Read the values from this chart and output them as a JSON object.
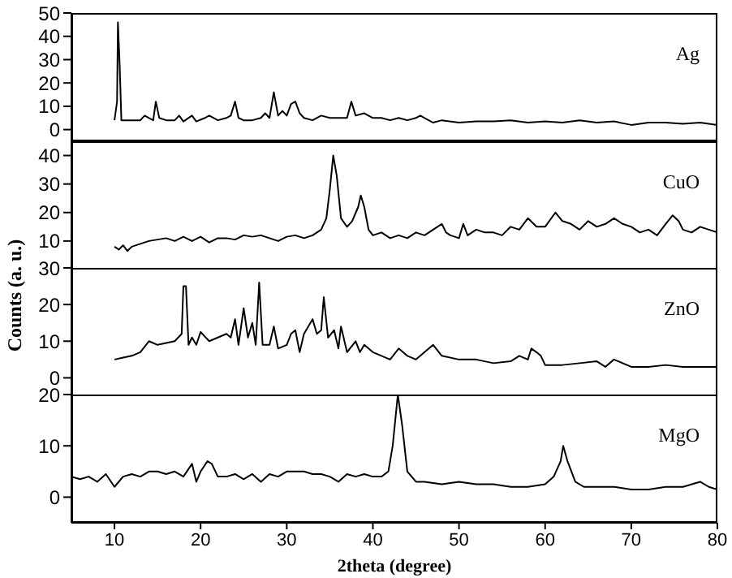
{
  "chart_data": [
    {
      "type": "line",
      "xlim": [
        5,
        80
      ],
      "xticks": [
        10,
        20,
        30,
        40,
        50,
        60,
        70,
        80
      ],
      "ylim": [
        -5,
        50
      ],
      "yticks": [
        0,
        10,
        20,
        30,
        40,
        50
      ],
      "tick_labels": "y",
      "marker": "none",
      "line_style": "solid",
      "series": [
        {
          "name": "Ag",
          "color": "#000000",
          "x": [
            10,
            10.3,
            10.4,
            10.6,
            10.8,
            11.5,
            12,
            13,
            13.5,
            14,
            14.5,
            14.8,
            15.2,
            16,
            17,
            17.5,
            18,
            19,
            19.5,
            20.5,
            21,
            22,
            23,
            23.5,
            24,
            24.4,
            25,
            26,
            27,
            27.5,
            28,
            28.5,
            29,
            29.5,
            30,
            30.5,
            31,
            31.5,
            32,
            33,
            34,
            35,
            36,
            37,
            37.5,
            38,
            39,
            40,
            41,
            42,
            43,
            44,
            45,
            45.5,
            46,
            47,
            48,
            50,
            52,
            54,
            56,
            58,
            60,
            62,
            64,
            66,
            68,
            70,
            72,
            74,
            76,
            78,
            80
          ],
          "values": [
            4,
            12,
            46,
            28,
            4,
            4,
            4,
            4,
            6,
            5,
            4,
            12,
            5,
            4,
            4,
            6,
            3.5,
            6,
            3.5,
            5,
            6,
            4,
            5,
            6,
            12,
            5,
            4,
            4,
            5,
            7,
            5,
            16,
            6,
            8,
            6,
            11,
            12,
            7,
            5,
            4,
            6,
            5,
            5,
            5,
            12,
            6,
            7,
            5,
            5,
            4,
            5,
            4,
            5,
            6,
            5,
            3,
            4,
            3,
            3.5,
            3.5,
            4,
            3,
            3.5,
            3,
            4,
            3,
            3.5,
            2,
            3,
            3,
            2.5,
            3,
            2
          ]
        }
      ]
    },
    {
      "type": "line",
      "xlim": [
        5,
        80
      ],
      "xticks": [
        10,
        20,
        30,
        40,
        50,
        60,
        70,
        80
      ],
      "ylim": [
        0,
        45
      ],
      "yticks": [
        10,
        20,
        30,
        40
      ],
      "tick_labels": "y",
      "marker": "none",
      "line_style": "solid",
      "series": [
        {
          "name": "CuO",
          "color": "#000000",
          "x": [
            10,
            10.5,
            11,
            11.5,
            12,
            13,
            14,
            15,
            16,
            17,
            18,
            19,
            20,
            21,
            22,
            23,
            24,
            25,
            26,
            27,
            28,
            29,
            30,
            31,
            32,
            33,
            34,
            34.6,
            35,
            35.4,
            35.8,
            36.3,
            37,
            37.6,
            38.3,
            38.6,
            39,
            39.5,
            40,
            41,
            42,
            43,
            44,
            45,
            46,
            47,
            48,
            48.5,
            49,
            50,
            50.5,
            51,
            52,
            53,
            54,
            55,
            56,
            57,
            58,
            59,
            60,
            61.2,
            62,
            63,
            64,
            65,
            66,
            67,
            68,
            69,
            70,
            71,
            72,
            73,
            74,
            74.8,
            75.5,
            76,
            77,
            78,
            79,
            80
          ],
          "values": [
            8,
            7,
            8.5,
            6.5,
            8,
            9,
            10,
            10.5,
            11,
            10,
            11.5,
            10,
            11.5,
            9.5,
            11,
            11,
            10.5,
            12,
            11.5,
            12,
            11,
            10,
            11.5,
            12,
            11,
            12,
            14,
            18,
            28,
            40,
            33,
            18,
            15,
            17,
            22,
            26,
            22,
            14,
            12,
            13,
            11,
            12,
            11,
            13,
            12,
            14,
            16,
            13,
            12,
            11,
            16,
            12,
            14,
            13,
            13,
            12,
            15,
            14,
            18,
            15,
            15,
            20,
            17,
            16,
            14,
            17,
            15,
            16,
            18,
            16,
            15,
            13,
            14,
            12,
            16,
            19,
            17,
            14,
            13,
            15,
            14,
            13
          ]
        }
      ]
    },
    {
      "type": "line",
      "xlim": [
        5,
        80
      ],
      "xticks": [
        10,
        20,
        30,
        40,
        50,
        60,
        70,
        80
      ],
      "ylim": [
        -5,
        30
      ],
      "yticks": [
        0,
        10,
        20,
        30
      ],
      "tick_labels": "y",
      "marker": "none",
      "line_style": "solid",
      "ylabel": "Counts (a. u.)",
      "series": [
        {
          "name": "ZnO",
          "color": "#000000",
          "x": [
            10,
            11,
            12,
            13,
            14,
            15,
            16,
            17,
            17.8,
            18,
            18.3,
            18.6,
            19,
            19.5,
            20,
            21,
            22,
            23,
            23.5,
            24,
            24.4,
            25,
            25.5,
            26,
            26.4,
            26.8,
            27.2,
            28,
            28.5,
            29,
            30,
            30.5,
            31,
            31.5,
            32,
            33,
            33.5,
            34,
            34.3,
            34.8,
            35.5,
            36,
            36.3,
            37,
            38,
            38.5,
            39,
            40,
            41,
            42,
            43,
            44,
            45,
            46,
            47,
            48,
            50,
            52,
            54,
            56,
            57,
            58,
            58.4,
            59,
            59.5,
            60,
            62,
            64,
            66,
            67,
            68,
            70,
            72,
            74,
            76,
            78,
            80
          ],
          "values": [
            5,
            5.5,
            6,
            7,
            10,
            9,
            9.5,
            10,
            12,
            25,
            25,
            9,
            11,
            9,
            12.5,
            10,
            11,
            12,
            11,
            16,
            9,
            19,
            11,
            15,
            9,
            26,
            9,
            9,
            14,
            8,
            9,
            12,
            13,
            7,
            12,
            16,
            12,
            13,
            22,
            11,
            13,
            8,
            14,
            7,
            10,
            7,
            9,
            7,
            6,
            5,
            8,
            6,
            5,
            7,
            9,
            6,
            5,
            5,
            4,
            4.5,
            6,
            5,
            8,
            7,
            6,
            3.5,
            3.5,
            4,
            4.5,
            3,
            5,
            3,
            3,
            3.5,
            3,
            3,
            3
          ]
        }
      ]
    },
    {
      "type": "line",
      "xlim": [
        5,
        80
      ],
      "xticks": [
        10,
        20,
        30,
        40,
        50,
        60,
        70,
        80
      ],
      "ylim": [
        -5,
        20
      ],
      "yticks": [
        0,
        10,
        20
      ],
      "marker": "none",
      "line_style": "solid",
      "xlabel": "2theta (degree)",
      "series": [
        {
          "name": "MgO",
          "color": "#000000",
          "x": [
            5,
            6,
            7,
            8,
            9,
            10,
            11,
            12,
            13,
            14,
            15,
            16,
            17,
            18,
            19,
            19.5,
            20,
            20.8,
            21.3,
            22,
            23,
            24,
            25,
            26,
            27,
            28,
            29,
            30,
            31,
            32,
            33,
            34,
            35,
            36,
            37,
            38,
            39,
            40,
            41,
            41.8,
            42.3,
            42.9,
            43.4,
            44,
            45,
            46,
            48,
            50,
            52,
            54,
            56,
            58,
            60,
            61,
            61.8,
            62.1,
            62.6,
            63.5,
            64.5,
            66,
            68,
            70,
            72,
            74,
            76,
            78,
            79,
            80
          ],
          "values": [
            4,
            3.5,
            4,
            3,
            4.5,
            2,
            4,
            4.5,
            4,
            5,
            5,
            4.5,
            5,
            4,
            6.5,
            3,
            5,
            7,
            6.5,
            4,
            4,
            4.5,
            3.5,
            4.5,
            3,
            4.5,
            4,
            5,
            5,
            5,
            4.5,
            4.5,
            4,
            3,
            4.5,
            4,
            4.5,
            4,
            4,
            5,
            10,
            20,
            14,
            5,
            3,
            3,
            2.5,
            3,
            2.5,
            2.5,
            2,
            2,
            2.5,
            4,
            7,
            10,
            7,
            3,
            2,
            2,
            2,
            1.5,
            1.5,
            2,
            2,
            3,
            2,
            1.5
          ]
        }
      ]
    }
  ]
}
